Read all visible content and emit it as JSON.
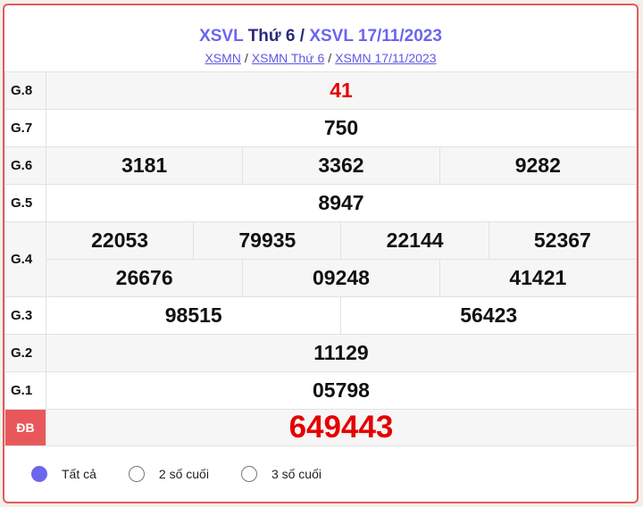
{
  "header": {
    "title_link1": "XSVL",
    "title_mid": "Thứ 6",
    "title_sep": "/",
    "title_link2": "XSVL 17/11/2023",
    "breadcrumbs": [
      "XSMN",
      "XSMN Thứ 6",
      "XSMN 17/11/2023"
    ],
    "breadcrumb_sep": "/"
  },
  "results": {
    "g8": {
      "label": "G.8",
      "values": [
        "41"
      ]
    },
    "g7": {
      "label": "G.7",
      "values": [
        "750"
      ]
    },
    "g6": {
      "label": "G.6",
      "values": [
        "3181",
        "3362",
        "9282"
      ]
    },
    "g5": {
      "label": "G.5",
      "values": [
        "8947"
      ]
    },
    "g4": {
      "label": "G.4",
      "values": [
        "22053",
        "79935",
        "22144",
        "52367",
        "26676",
        "09248",
        "41421"
      ]
    },
    "g3": {
      "label": "G.3",
      "values": [
        "98515",
        "56423"
      ]
    },
    "g2": {
      "label": "G.2",
      "values": [
        "11129"
      ]
    },
    "g1": {
      "label": "G.1",
      "values": [
        "05798"
      ]
    },
    "db": {
      "label": "ĐB",
      "values": [
        "649443"
      ]
    }
  },
  "filters": {
    "options": [
      "Tất cả",
      "2 số cuối",
      "3 số cuối"
    ],
    "selected": "Tất cả"
  },
  "colors": {
    "accent": "#6b65f0",
    "prize_red": "#e50000",
    "border": "#e35b5b",
    "db_label_bg": "#e8585b"
  }
}
